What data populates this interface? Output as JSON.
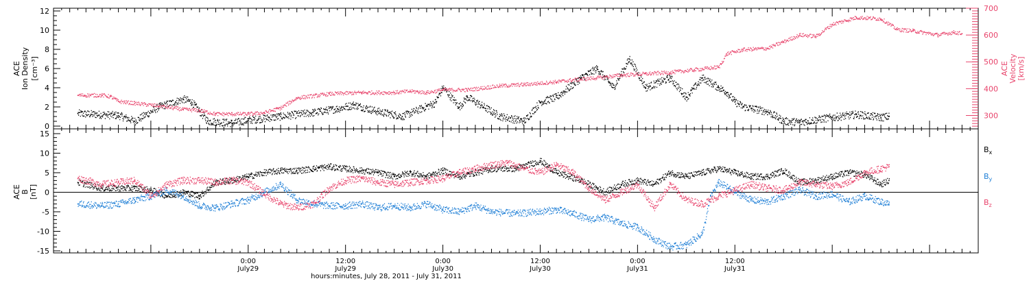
{
  "chart_data": [
    {
      "type": "scatter",
      "panel": "top",
      "left_axis": {
        "label_lines": [
          "ACE",
          "Ion Density",
          "[cm⁻³]"
        ],
        "range": [
          0,
          12
        ],
        "ticks": [
          "0",
          "2",
          "4",
          "6",
          "8",
          "10",
          "12"
        ],
        "color": "#000000"
      },
      "right_axis": {
        "label_lines": [
          "ACE",
          "Velocity",
          "[km/s]"
        ],
        "range": [
          250,
          700
        ],
        "ticks": [
          "300",
          "400",
          "500",
          "600",
          "700"
        ],
        "color": "#e8436b"
      },
      "series": [
        {
          "name": "Ion Density",
          "color": "#000000",
          "axis": "left",
          "key_points": [
            [
              -21,
              1.3
            ],
            [
              -16,
              1.1
            ],
            [
              -14,
              0.5
            ],
            [
              -11,
              2.0
            ],
            [
              -8,
              2.8
            ],
            [
              -7,
              2.5
            ],
            [
              -5,
              0.5
            ],
            [
              -2,
              0.3
            ],
            [
              0,
              0.6
            ],
            [
              4,
              1.0
            ],
            [
              8,
              1.4
            ],
            [
              11,
              1.8
            ],
            [
              13,
              2.2
            ],
            [
              16,
              1.5
            ],
            [
              19,
              1.0
            ],
            [
              23,
              2.4
            ],
            [
              24,
              4.0
            ],
            [
              26,
              2.0
            ],
            [
              27,
              3.0
            ],
            [
              31,
              1.0
            ],
            [
              34,
              0.5
            ],
            [
              36,
              2.5
            ],
            [
              38,
              3.0
            ],
            [
              41,
              5.0
            ],
            [
              43,
              6.0
            ],
            [
              45,
              4.0
            ],
            [
              47,
              7.0
            ],
            [
              49,
              4.0
            ],
            [
              52,
              5.0
            ],
            [
              54,
              3.0
            ],
            [
              56,
              5.0
            ],
            [
              58,
              4.0
            ],
            [
              59,
              3.5
            ],
            [
              60,
              2.5
            ],
            [
              61,
              2.0
            ],
            [
              64,
              1.5
            ],
            [
              66,
              0.5
            ],
            [
              68,
              0.4
            ],
            [
              72,
              0.9
            ],
            [
              75,
              1.2
            ],
            [
              78,
              0.9
            ],
            [
              79,
              1.0
            ]
          ]
        },
        {
          "name": "Velocity",
          "color": "#e8436b",
          "axis": "right",
          "key_points": [
            [
              -21,
              375
            ],
            [
              -18,
              375
            ],
            [
              -17,
              370
            ],
            [
              -16,
              352
            ],
            [
              -14,
              345
            ],
            [
              -11,
              335
            ],
            [
              -8,
              322
            ],
            [
              -6,
              318
            ],
            [
              -4,
              305
            ],
            [
              -2,
              305
            ],
            [
              0,
              305
            ],
            [
              2,
              310
            ],
            [
              4,
              328
            ],
            [
              6,
              365
            ],
            [
              10,
              380
            ],
            [
              14,
              385
            ],
            [
              18,
              385
            ],
            [
              20,
              390
            ],
            [
              22,
              385
            ],
            [
              24,
              395
            ],
            [
              27,
              395
            ],
            [
              31,
              410
            ],
            [
              34,
              415
            ],
            [
              38,
              425
            ],
            [
              40,
              432
            ],
            [
              43,
              440
            ],
            [
              46,
              450
            ],
            [
              49,
              455
            ],
            [
              52,
              460
            ],
            [
              55,
              470
            ],
            [
              58,
              480
            ],
            [
              59,
              530
            ],
            [
              61,
              545
            ],
            [
              64,
              550
            ],
            [
              66,
              575
            ],
            [
              68,
              600
            ],
            [
              70,
              595
            ],
            [
              72,
              640
            ],
            [
              75,
              665
            ],
            [
              78,
              660
            ],
            [
              80,
              620
            ],
            [
              82,
              615
            ],
            [
              85,
              600
            ],
            [
              87,
              610
            ],
            [
              88,
              605
            ]
          ]
        }
      ],
      "spikes_note": null
    },
    {
      "type": "scatter",
      "panel": "bottom",
      "left_axis": {
        "label_lines": [
          "ACE",
          "B",
          "[nT]"
        ],
        "range": [
          -15,
          15
        ],
        "ticks": [
          "-15",
          "-10",
          "-5",
          "0",
          "5",
          "10",
          "15"
        ],
        "color": "#000000"
      },
      "legend": [
        {
          "main": "B",
          "sub": "x",
          "color": "#000000"
        },
        {
          "main": "B",
          "sub": "y",
          "color": "#1f7fd6"
        },
        {
          "main": "B",
          "sub": "z",
          "color": "#e8436b"
        }
      ],
      "series": [
        {
          "name": "Bx",
          "color": "#000000",
          "key_points": [
            [
              -21,
              2.5
            ],
            [
              -18,
              1.0
            ],
            [
              -14,
              1.0
            ],
            [
              -12,
              0.5
            ],
            [
              -10,
              -1.0
            ],
            [
              -8,
              0.0
            ],
            [
              -6,
              -1.0
            ],
            [
              -4,
              2.5
            ],
            [
              -2,
              3.0
            ],
            [
              0,
              4.0
            ],
            [
              2,
              5.0
            ],
            [
              4,
              5.5
            ],
            [
              6,
              5.5
            ],
            [
              8,
              6.0
            ],
            [
              10,
              6.5
            ],
            [
              12,
              6.0
            ],
            [
              14,
              5.5
            ],
            [
              16,
              5.0
            ],
            [
              18,
              4.0
            ],
            [
              20,
              5.0
            ],
            [
              22,
              4.0
            ],
            [
              24,
              5.5
            ],
            [
              26,
              4.0
            ],
            [
              28,
              5.0
            ],
            [
              30,
              6.0
            ],
            [
              33,
              6.0
            ],
            [
              36,
              8.0
            ],
            [
              38,
              5.0
            ],
            [
              41,
              3.0
            ],
            [
              44,
              0.0
            ],
            [
              46,
              2.0
            ],
            [
              48,
              3.0
            ],
            [
              50,
              2.0
            ],
            [
              52,
              5.0
            ],
            [
              54,
              4.0
            ],
            [
              56,
              5.0
            ],
            [
              58,
              6.0
            ],
            [
              60,
              5.0
            ],
            [
              62,
              4.0
            ],
            [
              64,
              4.0
            ],
            [
              66,
              5.5
            ],
            [
              68,
              2.5
            ],
            [
              70,
              3.0
            ],
            [
              72,
              4.0
            ],
            [
              74,
              5.0
            ],
            [
              76,
              4.5
            ],
            [
              78,
              2.0
            ],
            [
              79,
              3.0
            ]
          ]
        },
        {
          "name": "By",
          "color": "#1f7fd6",
          "key_points": [
            [
              -21,
              -3.0
            ],
            [
              -18,
              -3.5
            ],
            [
              -16,
              -3.0
            ],
            [
              -14,
              -2.0
            ],
            [
              -12,
              -1.0
            ],
            [
              -10,
              0.5
            ],
            [
              -8,
              -1.0
            ],
            [
              -6,
              -3.5
            ],
            [
              -4,
              -4.0
            ],
            [
              -2,
              -3.0
            ],
            [
              0,
              -2.0
            ],
            [
              2,
              0.0
            ],
            [
              4,
              2.0
            ],
            [
              6,
              -2.0
            ],
            [
              8,
              -3.0
            ],
            [
              10,
              -3.5
            ],
            [
              12,
              -3.5
            ],
            [
              14,
              -3.0
            ],
            [
              16,
              -4.0
            ],
            [
              18,
              -3.5
            ],
            [
              20,
              -4.0
            ],
            [
              22,
              -3.0
            ],
            [
              24,
              -4.5
            ],
            [
              26,
              -5.0
            ],
            [
              28,
              -3.5
            ],
            [
              30,
              -5.0
            ],
            [
              33,
              -5.5
            ],
            [
              36,
              -5.0
            ],
            [
              38,
              -4.5
            ],
            [
              40,
              -5.5
            ],
            [
              42,
              -7.0
            ],
            [
              44,
              -6.5
            ],
            [
              46,
              -8.0
            ],
            [
              48,
              -9.0
            ],
            [
              50,
              -12.0
            ],
            [
              52,
              -14.0
            ],
            [
              54,
              -13.5
            ],
            [
              56,
              -10.5
            ],
            [
              57,
              -1.0
            ],
            [
              58,
              2.5
            ],
            [
              60,
              0.0
            ],
            [
              62,
              -2.0
            ],
            [
              64,
              -2.5
            ],
            [
              66,
              -1.0
            ],
            [
              68,
              0.5
            ],
            [
              70,
              -1.0
            ],
            [
              72,
              -0.5
            ],
            [
              74,
              -2.5
            ],
            [
              76,
              -1.0
            ],
            [
              78,
              -2.5
            ],
            [
              79,
              -3.0
            ]
          ]
        },
        {
          "name": "Bz",
          "color": "#e8436b",
          "key_points": [
            [
              -21,
              3.5
            ],
            [
              -18,
              2.0
            ],
            [
              -16,
              2.5
            ],
            [
              -14,
              3.0
            ],
            [
              -12,
              -1.0
            ],
            [
              -10,
              2.0
            ],
            [
              -8,
              3.0
            ],
            [
              -6,
              3.0
            ],
            [
              -4,
              2.5
            ],
            [
              -2,
              3.0
            ],
            [
              0,
              2.5
            ],
            [
              2,
              -0.5
            ],
            [
              4,
              -3.0
            ],
            [
              6,
              -4.0
            ],
            [
              8,
              -3.0
            ],
            [
              10,
              1.0
            ],
            [
              12,
              3.0
            ],
            [
              14,
              3.5
            ],
            [
              16,
              2.5
            ],
            [
              18,
              2.0
            ],
            [
              20,
              2.5
            ],
            [
              22,
              3.0
            ],
            [
              24,
              3.5
            ],
            [
              26,
              5.0
            ],
            [
              28,
              6.0
            ],
            [
              30,
              7.0
            ],
            [
              32,
              7.5
            ],
            [
              34,
              6.0
            ],
            [
              36,
              5.0
            ],
            [
              38,
              7.0
            ],
            [
              40,
              5.0
            ],
            [
              42,
              1.0
            ],
            [
              44,
              -2.0
            ],
            [
              46,
              0.0
            ],
            [
              48,
              2.0
            ],
            [
              50,
              -4.0
            ],
            [
              52,
              2.0
            ],
            [
              54,
              -2.0
            ],
            [
              56,
              -3.0
            ],
            [
              58,
              -1.0
            ],
            [
              60,
              0.5
            ],
            [
              62,
              2.0
            ],
            [
              64,
              1.0
            ],
            [
              66,
              0.5
            ],
            [
              68,
              2.5
            ],
            [
              70,
              2.0
            ],
            [
              72,
              1.5
            ],
            [
              74,
              2.5
            ],
            [
              76,
              5.0
            ],
            [
              78,
              6.0
            ],
            [
              79,
              6.5
            ]
          ]
        }
      ]
    }
  ],
  "x_axis": {
    "range_hours": [
      -24,
      90
    ],
    "major_tick_labels": [
      {
        "time": "0:00",
        "date": "July29",
        "hour": 0
      },
      {
        "time": "12:00",
        "date": "July29",
        "hour": 12
      },
      {
        "time": "0:00",
        "date": "July30",
        "hour": 24
      },
      {
        "time": "12:00",
        "date": "July30",
        "hour": 36
      },
      {
        "time": "0:00",
        "date": "July31",
        "hour": 48
      },
      {
        "time": "12:00",
        "date": "July31",
        "hour": 60
      }
    ],
    "title": "hours:minutes, July 28, 2011 - July 31, 2011"
  }
}
